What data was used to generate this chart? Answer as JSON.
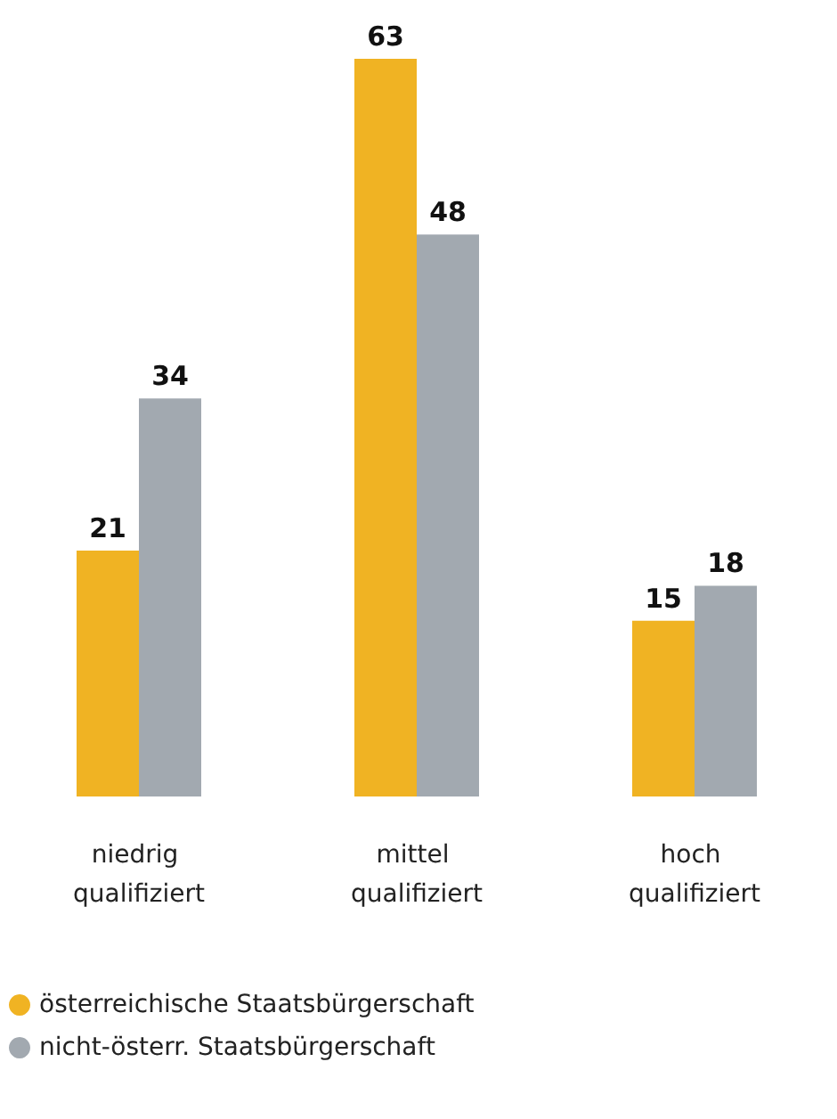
{
  "chart_data": {
    "type": "bar",
    "categories": [
      "niedrig qualifiziert",
      "mittel qualifiziert",
      "hoch qualifiziert"
    ],
    "series": [
      {
        "name": "österreichische Staatsbürgerschaft",
        "color": "#f0b323",
        "values": [
          21,
          63,
          15
        ]
      },
      {
        "name": "nicht-österr. Staatsbürgerschaft",
        "color": "#a2a9b0",
        "values": [
          34,
          48,
          18
        ]
      }
    ],
    "data_labels": true,
    "legend": "bottom left"
  }
}
